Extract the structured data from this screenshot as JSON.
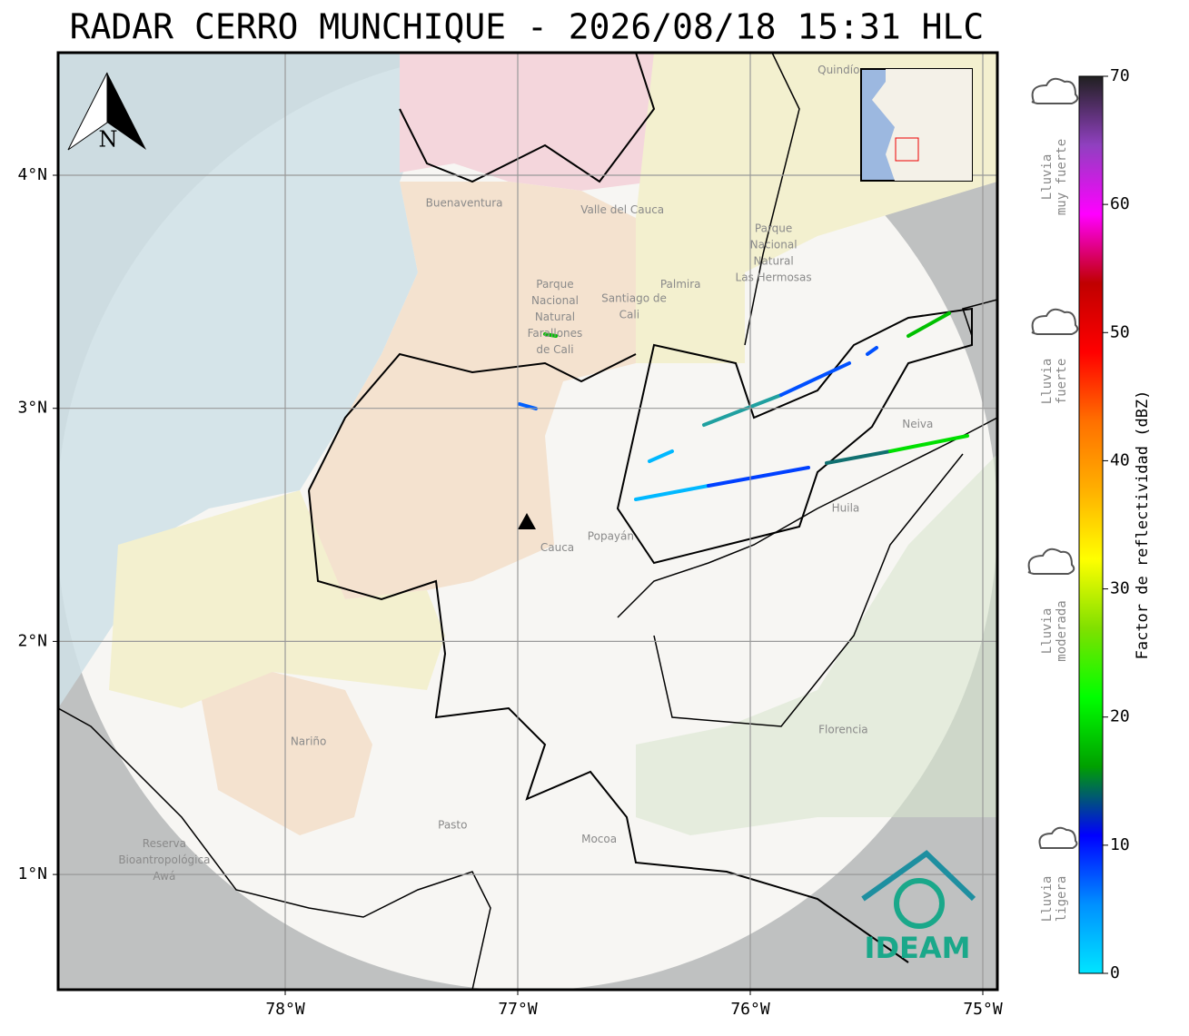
{
  "title": "RADAR CERRO MUNCHIQUE - 2026/08/18 15:31 HLC",
  "map": {
    "lonlim": [
      -79,
      -75
    ],
    "latlim": [
      0.5,
      4.5
    ],
    "lonticks": [
      {
        "value": -78,
        "label": "78°W"
      },
      {
        "value": -77,
        "label": "77°W"
      },
      {
        "value": -76,
        "label": "76°W"
      },
      {
        "value": -75,
        "label": "75°W"
      }
    ],
    "latticks": [
      {
        "value": 1,
        "label": "1°N"
      },
      {
        "value": 2,
        "label": "2°N"
      },
      {
        "value": 3,
        "label": "3°N"
      },
      {
        "value": 4,
        "label": "4°N"
      }
    ],
    "north_label": "N",
    "logo": "IDEAM",
    "places": [
      {
        "text": "Buenaventura",
        "lon": -77.23,
        "lat": 3.88
      },
      {
        "text": "Valle del Cauca",
        "lon": -76.55,
        "lat": 3.85
      },
      {
        "text": "Parque",
        "lon": -76.84,
        "lat": 3.53
      },
      {
        "text": "Nacional",
        "lon": -76.84,
        "lat": 3.46
      },
      {
        "text": "Natural",
        "lon": -76.84,
        "lat": 3.39
      },
      {
        "text": "Farallones",
        "lon": -76.84,
        "lat": 3.32
      },
      {
        "text": "de Cali",
        "lon": -76.84,
        "lat": 3.25
      },
      {
        "text": "Santiago de",
        "lon": -76.5,
        "lat": 3.47
      },
      {
        "text": "Cali",
        "lon": -76.52,
        "lat": 3.4
      },
      {
        "text": "Palmira",
        "lon": -76.3,
        "lat": 3.53
      },
      {
        "text": "Parque",
        "lon": -75.9,
        "lat": 3.77
      },
      {
        "text": "Nacional",
        "lon": -75.9,
        "lat": 3.7
      },
      {
        "text": "Natural",
        "lon": -75.9,
        "lat": 3.63
      },
      {
        "text": "Las Hermosas",
        "lon": -75.9,
        "lat": 3.56
      },
      {
        "text": "Neiva",
        "lon": -75.28,
        "lat": 2.93
      },
      {
        "text": "Huila",
        "lon": -75.59,
        "lat": 2.57
      },
      {
        "text": "Popayán",
        "lon": -76.6,
        "lat": 2.45
      },
      {
        "text": "Cauca",
        "lon": -76.83,
        "lat": 2.4
      },
      {
        "text": "Nariño",
        "lon": -77.9,
        "lat": 1.57
      },
      {
        "text": "Florencia",
        "lon": -75.6,
        "lat": 1.62
      },
      {
        "text": "Pasto",
        "lon": -77.28,
        "lat": 1.21
      },
      {
        "text": "Mocoa",
        "lon": -76.65,
        "lat": 1.15
      },
      {
        "text": "Reserva",
        "lon": -78.52,
        "lat": 1.13
      },
      {
        "text": "Bioantropológica",
        "lon": -78.52,
        "lat": 1.06
      },
      {
        "text": "Awá",
        "lon": -78.52,
        "lat": 0.99
      },
      {
        "text": "Quindío",
        "lon": -75.62,
        "lat": 4.45
      }
    ]
  },
  "colorbar": {
    "label": "Factor de reflectividad (dBZ)",
    "lim": [
      0,
      70
    ],
    "ticks": [
      0,
      10,
      20,
      30,
      40,
      50,
      60,
      70
    ],
    "colors": [
      "#00e5ff",
      "#0090ff",
      "#0000ff",
      "#00a000",
      "#00ff00",
      "#80e000",
      "#ffff00",
      "#ffb000",
      "#ff7000",
      "#ff0000",
      "#c00000",
      "#ff00ff",
      "#9040c0",
      "#202020"
    ]
  },
  "legend": [
    {
      "lines": [
        "Lluvia",
        "muy fuerte"
      ]
    },
    {
      "lines": [
        "Lluvia",
        "fuerte"
      ]
    },
    {
      "lines": [
        "Lluvia",
        "moderada"
      ]
    },
    {
      "lines": [
        "Lluvia",
        "ligera"
      ]
    }
  ]
}
